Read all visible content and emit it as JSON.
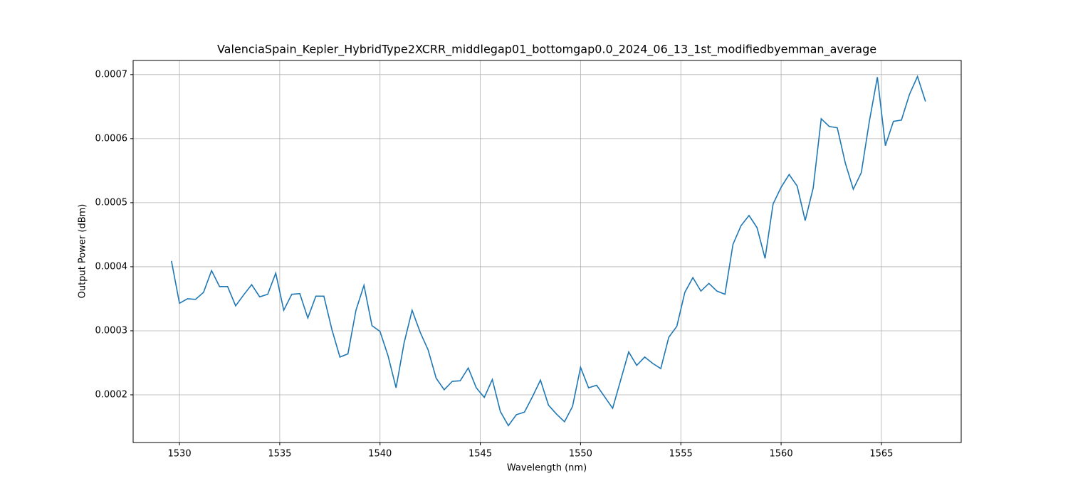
{
  "chart_data": {
    "type": "line",
    "title": "ValenciaSpain_Kepler_HybridType2XCRR_middlegap01_bottomgap0.0_2024_06_13_1st_modifiedbyemman_average",
    "x_label": "Wavelength (nm)",
    "y_label": "Output Power (dBm)",
    "x": [
      1529.6,
      1530.0,
      1530.4,
      1530.8,
      1531.2,
      1531.6,
      1532.0,
      1532.4,
      1532.8,
      1533.2,
      1533.6,
      1534.0,
      1534.4,
      1534.8,
      1535.2,
      1535.6,
      1536.0,
      1536.4,
      1536.8,
      1537.2,
      1537.6,
      1538.0,
      1538.4,
      1538.8,
      1539.2,
      1539.6,
      1540.0,
      1540.4,
      1540.8,
      1541.2,
      1541.6,
      1542.0,
      1542.4,
      1542.8,
      1543.2,
      1543.6,
      1544.0,
      1544.4,
      1544.8,
      1545.2,
      1545.6,
      1546.0,
      1546.4,
      1546.8,
      1547.2,
      1547.6,
      1548.0,
      1548.4,
      1548.8,
      1549.2,
      1549.6,
      1550.0,
      1550.4,
      1550.8,
      1551.2,
      1551.6,
      1552.0,
      1552.4,
      1552.8,
      1553.2,
      1553.6,
      1554.0,
      1554.4,
      1554.8,
      1555.2,
      1555.6,
      1556.0,
      1556.4,
      1556.8,
      1557.2,
      1557.6,
      1558.0,
      1558.4,
      1558.8,
      1559.2,
      1559.6,
      1560.0,
      1560.4,
      1560.8,
      1561.2,
      1561.6,
      1562.0,
      1562.4,
      1562.8,
      1563.2,
      1563.6,
      1564.0,
      1564.4,
      1564.8,
      1565.2,
      1565.6,
      1566.0,
      1566.4,
      1566.8,
      1567.2
    ],
    "series": [
      {
        "color": "#1f77b4",
        "values": [
          0.000409,
          0.000343,
          0.00035,
          0.000349,
          0.00036,
          0.000394,
          0.000369,
          0.000369,
          0.000339,
          0.000356,
          0.000372,
          0.000353,
          0.000357,
          0.00039,
          0.000332,
          0.000357,
          0.000358,
          0.00032,
          0.000354,
          0.000354,
          0.000302,
          0.000259,
          0.000264,
          0.000332,
          0.000371,
          0.000308,
          0.000299,
          0.000261,
          0.000211,
          0.000281,
          0.000332,
          0.000298,
          0.00027,
          0.000226,
          0.000208,
          0.000221,
          0.000222,
          0.000242,
          0.000211,
          0.000196,
          0.000224,
          0.000174,
          0.000152,
          0.000169,
          0.000173,
          0.000197,
          0.000223,
          0.000184,
          0.00017,
          0.000158,
          0.000182,
          0.000243,
          0.000211,
          0.000215,
          0.000197,
          0.000179,
          0.000223,
          0.000267,
          0.000246,
          0.000259,
          0.000249,
          0.000241,
          0.00029,
          0.000307,
          0.00036,
          0.000383,
          0.000362,
          0.000374,
          0.000362,
          0.000357,
          0.000435,
          0.000464,
          0.00048,
          0.000461,
          0.000413,
          0.000498,
          0.000524,
          0.000544,
          0.000526,
          0.000472,
          0.000523,
          0.000631,
          0.000619,
          0.000617,
          0.000562,
          0.000521,
          0.000547,
          0.000627,
          0.000696,
          0.000589,
          0.000627,
          0.000629,
          0.000669,
          0.000697,
          0.000658
        ]
      }
    ],
    "xlim": [
      1527.69,
      1568.98
    ],
    "ylim": [
      0.0001256,
      0.000722
    ],
    "xticks": [
      1530,
      1535,
      1540,
      1545,
      1550,
      1555,
      1560,
      1565
    ],
    "yticks": [
      0.0002,
      0.0003,
      0.0004,
      0.0005,
      0.0006,
      0.0007
    ],
    "grid": true
  }
}
